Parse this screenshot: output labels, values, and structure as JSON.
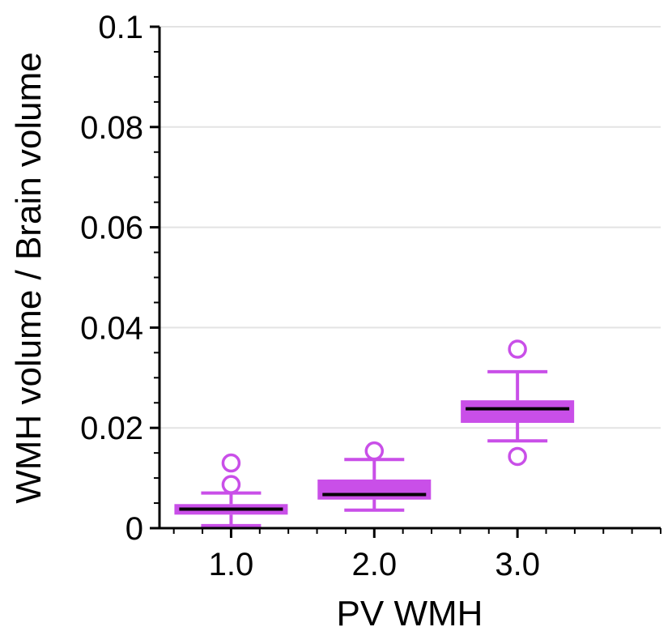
{
  "chart_data": {
    "type": "box",
    "title": "",
    "xlabel": "PV WMH",
    "ylabel": "WMH volume / Brain volume",
    "ylim": [
      0,
      0.1
    ],
    "xlim": [
      0.5,
      4.0
    ],
    "grid": true,
    "color": "#c94fe8",
    "median_color": "#000000",
    "yticks": [
      {
        "value": 0,
        "label": "0"
      },
      {
        "value": 0.02,
        "label": "0.02"
      },
      {
        "value": 0.04,
        "label": "0.04"
      },
      {
        "value": 0.06,
        "label": "0.06"
      },
      {
        "value": 0.08,
        "label": "0.08"
      },
      {
        "value": 0.1,
        "label": "0.1"
      }
    ],
    "xticks": [
      {
        "value": 1,
        "label": "1.0"
      },
      {
        "value": 2,
        "label": "2.0"
      },
      {
        "value": 3,
        "label": "3.0"
      }
    ],
    "boxes": [
      {
        "category": "1.0",
        "x": 1,
        "whisker_low": 0.0005,
        "q1": 0.0027,
        "median": 0.0038,
        "q3": 0.0048,
        "whisker_high": 0.007,
        "outliers": [
          0.0087,
          0.013
        ]
      },
      {
        "category": "2.0",
        "x": 2,
        "whisker_low": 0.0036,
        "q1": 0.0057,
        "median": 0.0067,
        "q3": 0.0097,
        "whisker_high": 0.0137,
        "outliers": [
          0.0154
        ]
      },
      {
        "category": "3.0",
        "x": 3,
        "whisker_low": 0.0174,
        "q1": 0.021,
        "median": 0.0238,
        "q3": 0.0255,
        "whisker_high": 0.0312,
        "outliers": [
          0.0143,
          0.0357
        ]
      }
    ]
  }
}
